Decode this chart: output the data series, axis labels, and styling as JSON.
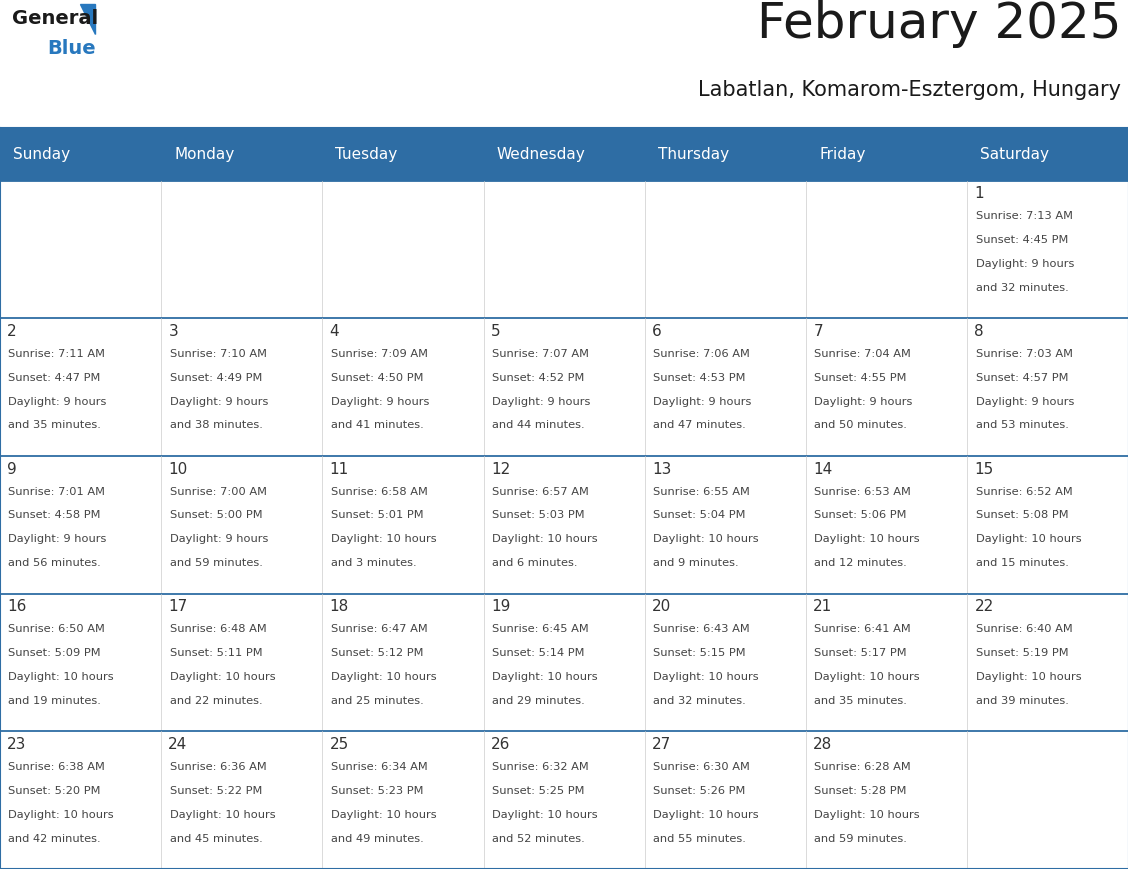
{
  "title": "February 2025",
  "subtitle": "Labatlan, Komarom-Esztergom, Hungary",
  "header_bg": "#2E6DA4",
  "header_text": "#FFFFFF",
  "cell_bg": "#FFFFFF",
  "cell_bg_alt": "#F2F2F2",
  "day_number_color": "#333333",
  "text_color": "#444444",
  "border_color": "#2E6DA4",
  "logo_black": "#1a1a1a",
  "logo_blue": "#2878BE",
  "days_of_week": [
    "Sunday",
    "Monday",
    "Tuesday",
    "Wednesday",
    "Thursday",
    "Friday",
    "Saturday"
  ],
  "calendar_data": [
    [
      null,
      null,
      null,
      null,
      null,
      null,
      {
        "day": "1",
        "sunrise": "7:13 AM",
        "sunset": "4:45 PM",
        "daylight": "9 hours",
        "daylight2": "and 32 minutes."
      }
    ],
    [
      {
        "day": "2",
        "sunrise": "7:11 AM",
        "sunset": "4:47 PM",
        "daylight": "9 hours",
        "daylight2": "and 35 minutes."
      },
      {
        "day": "3",
        "sunrise": "7:10 AM",
        "sunset": "4:49 PM",
        "daylight": "9 hours",
        "daylight2": "and 38 minutes."
      },
      {
        "day": "4",
        "sunrise": "7:09 AM",
        "sunset": "4:50 PM",
        "daylight": "9 hours",
        "daylight2": "and 41 minutes."
      },
      {
        "day": "5",
        "sunrise": "7:07 AM",
        "sunset": "4:52 PM",
        "daylight": "9 hours",
        "daylight2": "and 44 minutes."
      },
      {
        "day": "6",
        "sunrise": "7:06 AM",
        "sunset": "4:53 PM",
        "daylight": "9 hours",
        "daylight2": "and 47 minutes."
      },
      {
        "day": "7",
        "sunrise": "7:04 AM",
        "sunset": "4:55 PM",
        "daylight": "9 hours",
        "daylight2": "and 50 minutes."
      },
      {
        "day": "8",
        "sunrise": "7:03 AM",
        "sunset": "4:57 PM",
        "daylight": "9 hours",
        "daylight2": "and 53 minutes."
      }
    ],
    [
      {
        "day": "9",
        "sunrise": "7:01 AM",
        "sunset": "4:58 PM",
        "daylight": "9 hours",
        "daylight2": "and 56 minutes."
      },
      {
        "day": "10",
        "sunrise": "7:00 AM",
        "sunset": "5:00 PM",
        "daylight": "9 hours",
        "daylight2": "and 59 minutes."
      },
      {
        "day": "11",
        "sunrise": "6:58 AM",
        "sunset": "5:01 PM",
        "daylight": "10 hours",
        "daylight2": "and 3 minutes."
      },
      {
        "day": "12",
        "sunrise": "6:57 AM",
        "sunset": "5:03 PM",
        "daylight": "10 hours",
        "daylight2": "and 6 minutes."
      },
      {
        "day": "13",
        "sunrise": "6:55 AM",
        "sunset": "5:04 PM",
        "daylight": "10 hours",
        "daylight2": "and 9 minutes."
      },
      {
        "day": "14",
        "sunrise": "6:53 AM",
        "sunset": "5:06 PM",
        "daylight": "10 hours",
        "daylight2": "and 12 minutes."
      },
      {
        "day": "15",
        "sunrise": "6:52 AM",
        "sunset": "5:08 PM",
        "daylight": "10 hours",
        "daylight2": "and 15 minutes."
      }
    ],
    [
      {
        "day": "16",
        "sunrise": "6:50 AM",
        "sunset": "5:09 PM",
        "daylight": "10 hours",
        "daylight2": "and 19 minutes."
      },
      {
        "day": "17",
        "sunrise": "6:48 AM",
        "sunset": "5:11 PM",
        "daylight": "10 hours",
        "daylight2": "and 22 minutes."
      },
      {
        "day": "18",
        "sunrise": "6:47 AM",
        "sunset": "5:12 PM",
        "daylight": "10 hours",
        "daylight2": "and 25 minutes."
      },
      {
        "day": "19",
        "sunrise": "6:45 AM",
        "sunset": "5:14 PM",
        "daylight": "10 hours",
        "daylight2": "and 29 minutes."
      },
      {
        "day": "20",
        "sunrise": "6:43 AM",
        "sunset": "5:15 PM",
        "daylight": "10 hours",
        "daylight2": "and 32 minutes."
      },
      {
        "day": "21",
        "sunrise": "6:41 AM",
        "sunset": "5:17 PM",
        "daylight": "10 hours",
        "daylight2": "and 35 minutes."
      },
      {
        "day": "22",
        "sunrise": "6:40 AM",
        "sunset": "5:19 PM",
        "daylight": "10 hours",
        "daylight2": "and 39 minutes."
      }
    ],
    [
      {
        "day": "23",
        "sunrise": "6:38 AM",
        "sunset": "5:20 PM",
        "daylight": "10 hours",
        "daylight2": "and 42 minutes."
      },
      {
        "day": "24",
        "sunrise": "6:36 AM",
        "sunset": "5:22 PM",
        "daylight": "10 hours",
        "daylight2": "and 45 minutes."
      },
      {
        "day": "25",
        "sunrise": "6:34 AM",
        "sunset": "5:23 PM",
        "daylight": "10 hours",
        "daylight2": "and 49 minutes."
      },
      {
        "day": "26",
        "sunrise": "6:32 AM",
        "sunset": "5:25 PM",
        "daylight": "10 hours",
        "daylight2": "and 52 minutes."
      },
      {
        "day": "27",
        "sunrise": "6:30 AM",
        "sunset": "5:26 PM",
        "daylight": "10 hours",
        "daylight2": "and 55 minutes."
      },
      {
        "day": "28",
        "sunrise": "6:28 AM",
        "sunset": "5:28 PM",
        "daylight": "10 hours",
        "daylight2": "and 59 minutes."
      },
      null
    ]
  ]
}
